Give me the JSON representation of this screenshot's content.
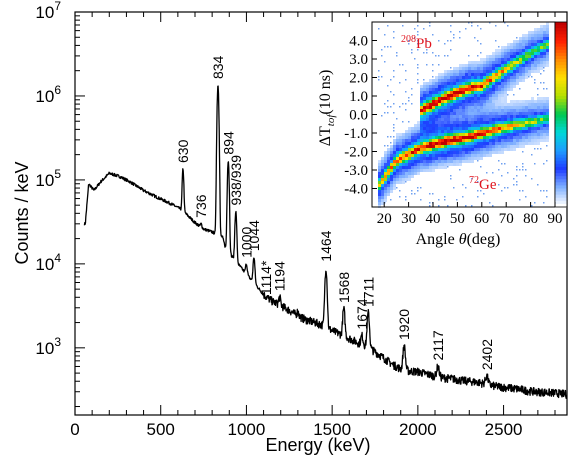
{
  "chart_data": [
    {
      "type": "line",
      "xlabel": "Energy (keV)",
      "ylabel": "Counts / keV",
      "xlim": [
        0,
        2870
      ],
      "ylim_log10": [
        2.2,
        7
      ],
      "y_scale": "log",
      "x_ticks": [
        0,
        500,
        1000,
        1500,
        2000,
        2500
      ],
      "x_tick_labels": [
        "0",
        "500",
        "1000",
        "1500",
        "2000",
        "2500"
      ],
      "y_tick_exponents": [
        3,
        4,
        5,
        6,
        7
      ],
      "y_tick_base": "10",
      "series_color": "#000000",
      "background": [
        [
          60,
          30000
        ],
        [
          80,
          90000
        ],
        [
          110,
          75000
        ],
        [
          150,
          95000
        ],
        [
          200,
          120000
        ],
        [
          260,
          110000
        ],
        [
          320,
          95000
        ],
        [
          400,
          75000
        ],
        [
          480,
          62000
        ],
        [
          560,
          52000
        ],
        [
          615,
          45000
        ],
        [
          650,
          39000
        ],
        [
          700,
          31000
        ],
        [
          750,
          26000
        ],
        [
          800,
          24000
        ],
        [
          860,
          21000
        ],
        [
          880,
          15000
        ],
        [
          920,
          12000
        ],
        [
          960,
          9500
        ],
        [
          1000,
          7500
        ],
        [
          1050,
          5800
        ],
        [
          1100,
          4300
        ],
        [
          1150,
          3600
        ],
        [
          1200,
          3200
        ],
        [
          1250,
          2800
        ],
        [
          1300,
          2400
        ],
        [
          1350,
          2150
        ],
        [
          1400,
          2000
        ],
        [
          1450,
          1850
        ],
        [
          1500,
          1600
        ],
        [
          1550,
          1450
        ],
        [
          1600,
          1300
        ],
        [
          1650,
          1150
        ],
        [
          1700,
          1050
        ],
        [
          1750,
          900
        ],
        [
          1800,
          760
        ],
        [
          1850,
          640
        ],
        [
          1900,
          560
        ],
        [
          1950,
          530
        ],
        [
          2000,
          520
        ],
        [
          2050,
          490
        ],
        [
          2100,
          460
        ],
        [
          2150,
          440
        ],
        [
          2200,
          430
        ],
        [
          2250,
          410
        ],
        [
          2300,
          400
        ],
        [
          2350,
          390
        ],
        [
          2400,
          370
        ],
        [
          2450,
          350
        ],
        [
          2500,
          340
        ],
        [
          2550,
          330
        ],
        [
          2600,
          320
        ],
        [
          2650,
          305
        ],
        [
          2700,
          300
        ],
        [
          2750,
          295
        ],
        [
          2800,
          290
        ],
        [
          2870,
          280
        ]
      ],
      "peaks": [
        {
          "energy": 630,
          "height": 135000,
          "label": "630"
        },
        {
          "energy": 736,
          "height": 30000,
          "label": "736"
        },
        {
          "energy": 834,
          "height": 1350000,
          "label": "834"
        },
        {
          "energy": 894,
          "height": 170000,
          "label": "894"
        },
        {
          "energy": 938,
          "height": 42000,
          "label": "938/939"
        },
        {
          "energy": 1000,
          "height": 10000,
          "label": "1000"
        },
        {
          "energy": 1044,
          "height": 12000,
          "label": "1044"
        },
        {
          "energy": 1114,
          "height": 3600,
          "label": "1114*"
        },
        {
          "energy": 1194,
          "height": 4000,
          "label": "1194"
        },
        {
          "energy": 1300,
          "height": 2700,
          "label": ""
        },
        {
          "energy": 1464,
          "height": 9000,
          "label": "1464"
        },
        {
          "energy": 1568,
          "height": 2900,
          "label": "1568"
        },
        {
          "energy": 1674,
          "height": 1400,
          "label": "1674"
        },
        {
          "energy": 1711,
          "height": 2600,
          "label": "1711"
        },
        {
          "energy": 1920,
          "height": 1050,
          "label": "1920"
        },
        {
          "energy": 2117,
          "height": 600,
          "label": "2117"
        },
        {
          "energy": 2402,
          "height": 460,
          "label": "2402"
        }
      ],
      "highlight_label": "1114*",
      "highlight_color": "#1a1ab4"
    },
    {
      "type": "heatmap",
      "xlabel": "Angle θ(deg)",
      "ylabel": "ΔT_tof(10 ns)",
      "ylabel_main": "ΔT",
      "ylabel_sub": "tof",
      "ylabel_unit": "(10 ns)",
      "xlabel_main": "Angle ",
      "xlabel_symbol": "θ",
      "xlabel_unit": "(deg)",
      "xlim": [
        15,
        90
      ],
      "ylim": [
        -5,
        5
      ],
      "x_ticks": [
        20,
        30,
        40,
        50,
        60,
        70,
        80,
        90
      ],
      "x_tick_labels": [
        "20",
        "30",
        "40",
        "50",
        "60",
        "70",
        "80",
        "90"
      ],
      "y_ticks": [
        4,
        3,
        2,
        1,
        0,
        -1,
        -2,
        -3,
        -4
      ],
      "y_tick_labels": [
        "4.0",
        "3.0",
        "2.0",
        "1.0",
        "0.0",
        "-1.0",
        "-2.0",
        "-3.0",
        "-4.0"
      ],
      "last_x_tick_color": "#e0141e",
      "colorbar": [
        "#ffffff",
        "#7fb0ff",
        "#1e3cff",
        "#1e9cff",
        "#00d8d8",
        "#00c850",
        "#b4e000",
        "#ffe000",
        "#ff8c00",
        "#ff2000",
        "#c00000"
      ],
      "bands": [
        {
          "nucleus": "Pb",
          "mass": "208",
          "ridge": [
            [
              35,
              0.2
            ],
            [
              45,
              0.9
            ],
            [
              55,
              1.45
            ],
            [
              60,
              1.55
            ],
            [
              70,
              2.45
            ],
            [
              80,
              3.3
            ],
            [
              88,
              3.85
            ]
          ]
        },
        {
          "nucleus": "Ge",
          "mass": "72",
          "ridge": [
            [
              18,
              -3.8
            ],
            [
              25,
              -2.5
            ],
            [
              35,
              -1.8
            ],
            [
              45,
              -1.45
            ],
            [
              55,
              -1.2
            ],
            [
              65,
              -0.85
            ],
            [
              75,
              -0.55
            ],
            [
              88,
              -0.2
            ]
          ]
        }
      ]
    }
  ]
}
